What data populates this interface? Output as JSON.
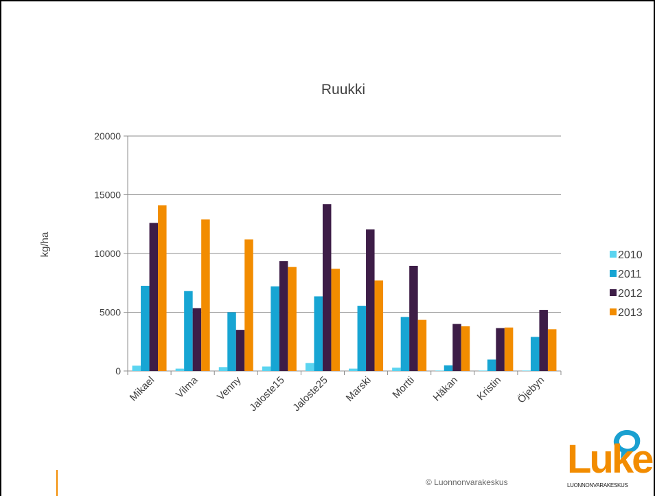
{
  "chart_data": {
    "type": "bar",
    "title": "Ruukki",
    "xlabel": "",
    "ylabel": "kg/ha",
    "ylim": [
      0,
      20000
    ],
    "yticks": [
      0,
      5000,
      10000,
      15000,
      20000
    ],
    "grid": true,
    "legend_position": "right",
    "categories": [
      "Mikael",
      "Vilma",
      "Venny",
      "Jaloste15",
      "Jaloste25",
      "Marski",
      "Mortti",
      "Häkan",
      "Kristin",
      "Öjebyn"
    ],
    "series": [
      {
        "name": "2010",
        "color": "#5bd4f0",
        "values": [
          450,
          200,
          330,
          380,
          680,
          200,
          280,
          0,
          0,
          0
        ]
      },
      {
        "name": "2011",
        "color": "#17a5d3",
        "values": [
          7250,
          6800,
          5000,
          7200,
          6350,
          5550,
          4600,
          480,
          970,
          2900
        ]
      },
      {
        "name": "2012",
        "color": "#3d1d47",
        "values": [
          12600,
          5350,
          3500,
          9350,
          14200,
          12050,
          8950,
          4000,
          3650,
          5200
        ]
      },
      {
        "name": "2013",
        "color": "#f28c00",
        "values": [
          14100,
          12900,
          11200,
          8850,
          8700,
          7700,
          4350,
          3800,
          3700,
          3550
        ]
      }
    ]
  },
  "footer": {
    "copyright": "© Luonnonvarakeskus",
    "logo_text": "Luke",
    "logo_subtext": "LUONNONVARAKESKUS"
  },
  "colors": {
    "accent": "#f28c00",
    "logo_bubble": "#1aa0d0"
  }
}
